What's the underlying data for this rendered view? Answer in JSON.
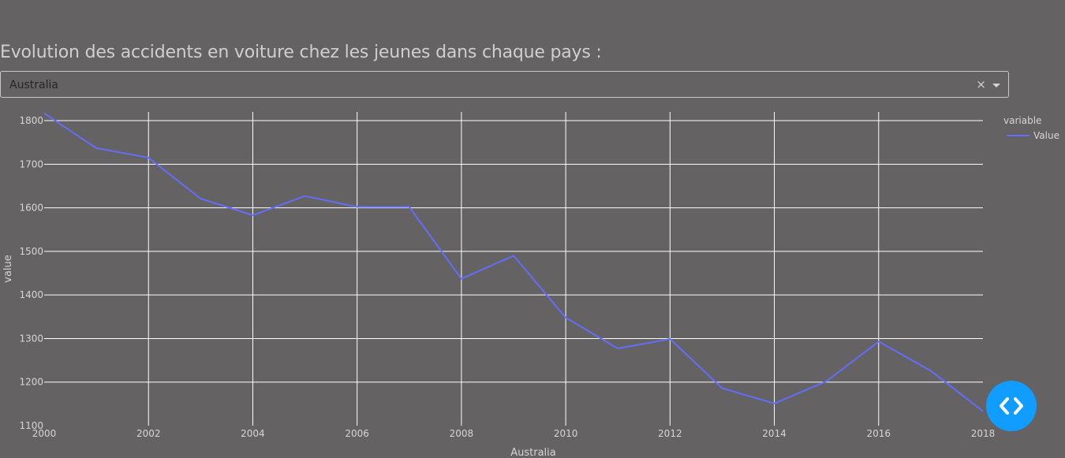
{
  "title": "Evolution des accidents en voiture chez les jeunes dans chaque pays :",
  "dropdown": {
    "selected": "Australia",
    "clear_label": "×"
  },
  "colors": {
    "line": "#636efa",
    "grid": "#ffffff",
    "text": "#d6d6d6",
    "background": "#646262",
    "accent": "#119dff"
  },
  "code_button": {
    "icon": "code-brackets-icon"
  },
  "chart_data": {
    "type": "line",
    "title": "",
    "xlabel": "Australia",
    "ylabel": "value",
    "xlim": [
      2000,
      2018
    ],
    "ylim": [
      1100,
      1820
    ],
    "x_ticks": [
      "2000",
      "2002",
      "2004",
      "2006",
      "2008",
      "2010",
      "2012",
      "2014",
      "2016",
      "2018"
    ],
    "y_ticks": [
      "1100",
      "1200",
      "1300",
      "1400",
      "1500",
      "1600",
      "1700",
      "1800"
    ],
    "legend_title": "variable",
    "legend_position": "top-right",
    "grid": true,
    "series": [
      {
        "name": "Value",
        "x": [
          2000,
          2001,
          2002,
          2003,
          2004,
          2005,
          2006,
          2007,
          2008,
          2009,
          2010,
          2011,
          2012,
          2013,
          2014,
          2015,
          2016,
          2017,
          2018
        ],
        "values": [
          1817,
          1737,
          1715,
          1621,
          1583,
          1627,
          1602,
          1602,
          1437,
          1490,
          1348,
          1277,
          1299,
          1186,
          1151,
          1202,
          1293,
          1226,
          1133
        ]
      }
    ]
  }
}
